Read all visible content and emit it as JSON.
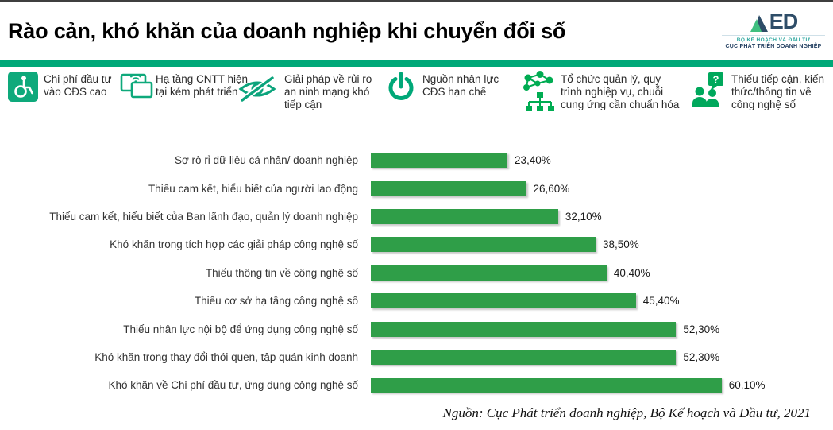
{
  "page": {
    "title": "Rào cản, khó khăn của doanh nghiệp khi chuyển đổi số"
  },
  "header": {
    "logo": {
      "wordmark": "ED",
      "ministry": "BỘ KẾ HOẠCH VÀ ĐẦU TƯ",
      "agency": "CỤC PHÁT TRIỂN DOANH NGHIỆP"
    }
  },
  "legend": {
    "items": [
      {
        "icon": "wheelchair-icon",
        "label": "Chi phí đầu tư vào CĐS cao",
        "color": "#0EA97B"
      },
      {
        "icon": "screens-wifi-icon",
        "label": "Hạ tầng CNTT hiện tại kém phát triển",
        "color": "#0EA97B"
      },
      {
        "icon": "eye-slash-icon",
        "label": "Giải pháp về rủi ro an ninh mạng khó tiếp cận",
        "color": "#0CA47C"
      },
      {
        "icon": "power-icon",
        "label": "Nguồn nhân lực CĐS hạn chế",
        "color": "#00A878"
      },
      {
        "icon": "network-orgchart-icon",
        "label": "Tổ chức quản lý, quy trình nghiệp vụ, chuỗi cung ứng cần chuẩn hóa",
        "color": "#00AC52"
      },
      {
        "icon": "people-question-icon",
        "label": "Thiếu tiếp cận, kiến thức/thông tin về công nghệ số",
        "color": "#00A85C"
      }
    ]
  },
  "chart_data": {
    "type": "bar",
    "orientation": "horizontal",
    "title": "Rào cản, khó khăn của doanh nghiệp khi chuyển đổi số",
    "categories": [
      "Sợ rò rỉ dữ liệu cá nhân/ doanh nghiệp",
      "Thiếu cam kết, hiểu biết của người lao động",
      "Thiếu cam kết, hiểu biết của Ban lãnh đạo, quản lý doanh nghiệp",
      "Khó khăn trong tích hợp các giải pháp công nghệ số",
      "Thiếu thông tin về công nghệ số",
      "Thiếu cơ sở hạ tầng công nghệ số",
      "Thiếu nhân lực nội bộ để ứng dụng  công nghệ số",
      "Khó khăn trong thay đổi thói quen, tập quán kinh doanh",
      "Khó khăn về Chi phí đầu tư, ứng dụng công nghệ số"
    ],
    "values": [
      23.4,
      26.6,
      32.1,
      38.5,
      40.4,
      45.4,
      52.3,
      52.3,
      60.1
    ],
    "value_labels": [
      "23,40%",
      "26,60%",
      "32,10%",
      "38,50%",
      "40,40%",
      "45,40%",
      "52,30%",
      "52,30%",
      "60,10%"
    ],
    "xlabel": "",
    "ylabel": "",
    "xlim": [
      0,
      65
    ],
    "grid": false,
    "legend_position": "none",
    "bar_color": "#2F9E48"
  },
  "source": "Nguồn: Cục Phát triển doanh nghiệp, Bộ Kế hoạch và Đầu tư, 2021",
  "colors": {
    "divider": "#00A878",
    "bar": "#2F9E48",
    "logo_green": "#3FBF7F",
    "logo_navy": "#2E4D68"
  }
}
